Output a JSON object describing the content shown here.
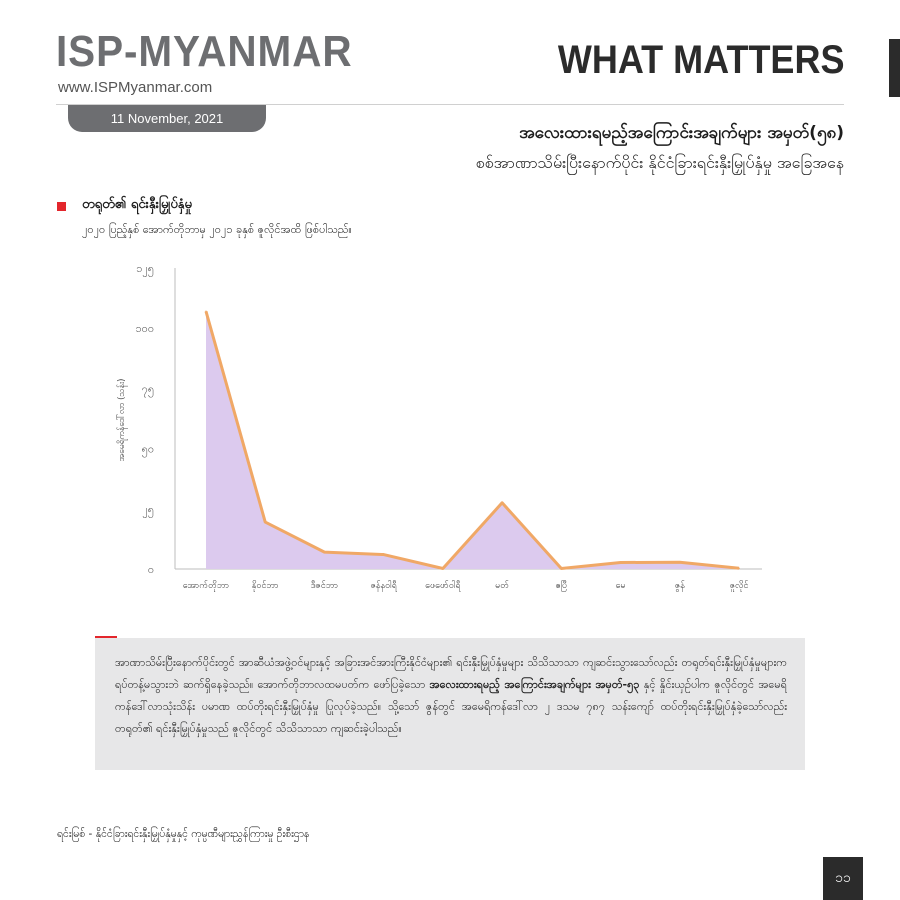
{
  "header": {
    "brand": "ISP-MYANMAR",
    "website": "www.ISPMyanmar.com",
    "series_title": "WHAT MATTERS",
    "date": "11 November, 2021"
  },
  "title": {
    "line1": "အလေးထားရမည့်အကြောင်းအချက်များ အမှတ်(၅၈)",
    "line2": "စစ်အာဏာသိမ်းပြီးနောက်ပိုင်း နိုင်ငံခြားရင်းနှီးမြှုပ်နှံမှု အခြေအနေ"
  },
  "section": {
    "heading": "တရုတ်၏ ရင်းနှီးမြှုပ်နှံမှု",
    "subheading": "၂၀၂၀ ပြည့်နှစ် အောက်တိုဘာမှ ၂၀၂၁ ခုနှစ် ဇူလိုင်အထိ ဖြစ်ပါသည်။"
  },
  "chart_data": {
    "type": "area",
    "ylabel": "အမေရိကန်ဒေါ်လာ (သန်း)",
    "categories": [
      "အောက်တိုဘာ",
      "နိုဝင်ဘာ",
      "ဒီဇင်ဘာ",
      "ဇန်နဝါရီ",
      "ဖေဖော်ဝါရီ",
      "မတ်",
      "ဧပြီ",
      "မေ",
      "ဇွန်",
      "ဇူလိုင်"
    ],
    "values": [
      107,
      19.5,
      7,
      6,
      0.2,
      27.5,
      0.2,
      2.7,
      2.8,
      0.3
    ],
    "ylim": [
      0,
      125
    ],
    "yticks": [
      0,
      25,
      50,
      75,
      100,
      125
    ],
    "ytick_labels": [
      "၀",
      "၂၅",
      "၅၀",
      "၇၅",
      "၁၀၀",
      "၁၂၅"
    ],
    "grid": false,
    "colors": {
      "line": "#f0a866",
      "fill": "#dccaee"
    }
  },
  "body_text": {
    "part1": "အာဏာသိမ်းပြီးနောက်ပိုင်းတွင် အာဆီယံအဖွဲ့ဝင်များနှင့် အခြားအင်အားကြီးနိုင်ငံများ၏ ရင်းနှီးမြှုပ်နှံမှုများ သိသိသာသာ ကျဆင်းသွားသော်လည်း တရုတ်ရင်းနှီးမြှုပ်နှံမှုများက ရပ်တန့်မသွားဘဲ ဆက်ရှိနေခဲ့သည်။ အောက်တိုဘာလထမပတ်က ဖော်ပြခဲ့သော ",
    "bold": "အလေးထားရမည့် အကြောင်းအချက်များ အမှတ်-၅၃",
    "part2": " နှင့် နှိုင်းယှဉ်ပါက ဇူလိုင်တွင် အမေရိကန်ဒေါ်လာသုံးသိန်း ပမာဏ ထပ်တိုးရင်းနှီးမြှုပ်နှံမှု ပြုလုပ်ခဲ့သည်။ သို့သော် ဇွန်တွင် အမေရိကန်ဒေါ်လာ ၂ ဒသမ ၇၈၇ သန်းကျော် ထပ်တိုးရင်းနှီးမြှုပ်နှံခဲ့သော်လည်း တရုတ်၏ ရင်းနှီးမြှုပ်နှံမှုသည် ဇူလိုင်တွင် သိသိသာသာ ကျဆင်းခဲ့ပါသည်။"
  },
  "source": "ရင်းမြစ် -    နိုင်ငံခြားရင်းနှီးမြှုပ်နှံမှုနှင့် ကုမ္ပဏီများညွှန်ကြားမှု ဦးစီးဌာန",
  "page_number": "၁၁"
}
